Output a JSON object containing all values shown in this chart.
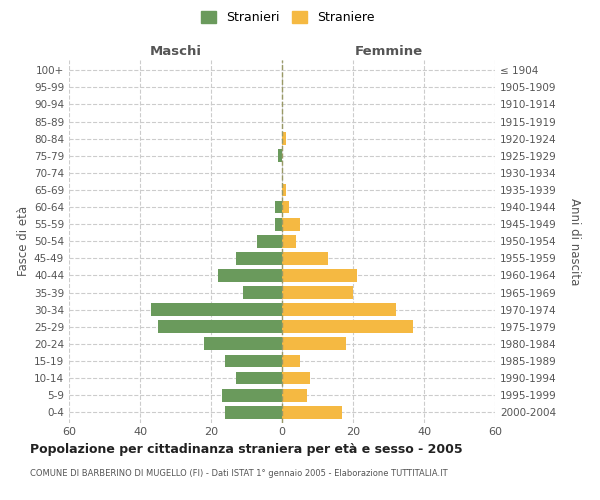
{
  "age_groups": [
    "100+",
    "95-99",
    "90-94",
    "85-89",
    "80-84",
    "75-79",
    "70-74",
    "65-69",
    "60-64",
    "55-59",
    "50-54",
    "45-49",
    "40-44",
    "35-39",
    "30-34",
    "25-29",
    "20-24",
    "15-19",
    "10-14",
    "5-9",
    "0-4"
  ],
  "birth_years": [
    "≤ 1904",
    "1905-1909",
    "1910-1914",
    "1915-1919",
    "1920-1924",
    "1925-1929",
    "1930-1934",
    "1935-1939",
    "1940-1944",
    "1945-1949",
    "1950-1954",
    "1955-1959",
    "1960-1964",
    "1965-1969",
    "1970-1974",
    "1975-1979",
    "1980-1984",
    "1985-1989",
    "1990-1994",
    "1995-1999",
    "2000-2004"
  ],
  "males": [
    0,
    0,
    0,
    0,
    0,
    1,
    0,
    0,
    2,
    2,
    7,
    13,
    18,
    11,
    37,
    35,
    22,
    16,
    13,
    17,
    16
  ],
  "females": [
    0,
    0,
    0,
    0,
    1,
    0,
    0,
    1,
    2,
    5,
    4,
    13,
    21,
    20,
    32,
    37,
    18,
    5,
    8,
    7,
    17
  ],
  "male_color": "#6a9a5c",
  "female_color": "#f5b942",
  "title": "Popolazione per cittadinanza straniera per età e sesso - 2005",
  "subtitle": "COMUNE DI BARBERINO DI MUGELLO (FI) - Dati ISTAT 1° gennaio 2005 - Elaborazione TUTTITALIA.IT",
  "ylabel_left": "Fasce di età",
  "ylabel_right": "Anni di nascita",
  "xlabel_left": "Maschi",
  "xlabel_right": "Femmine",
  "legend_stranieri": "Stranieri",
  "legend_straniere": "Straniere",
  "xlim": 60,
  "background_color": "#ffffff",
  "grid_color": "#cccccc"
}
